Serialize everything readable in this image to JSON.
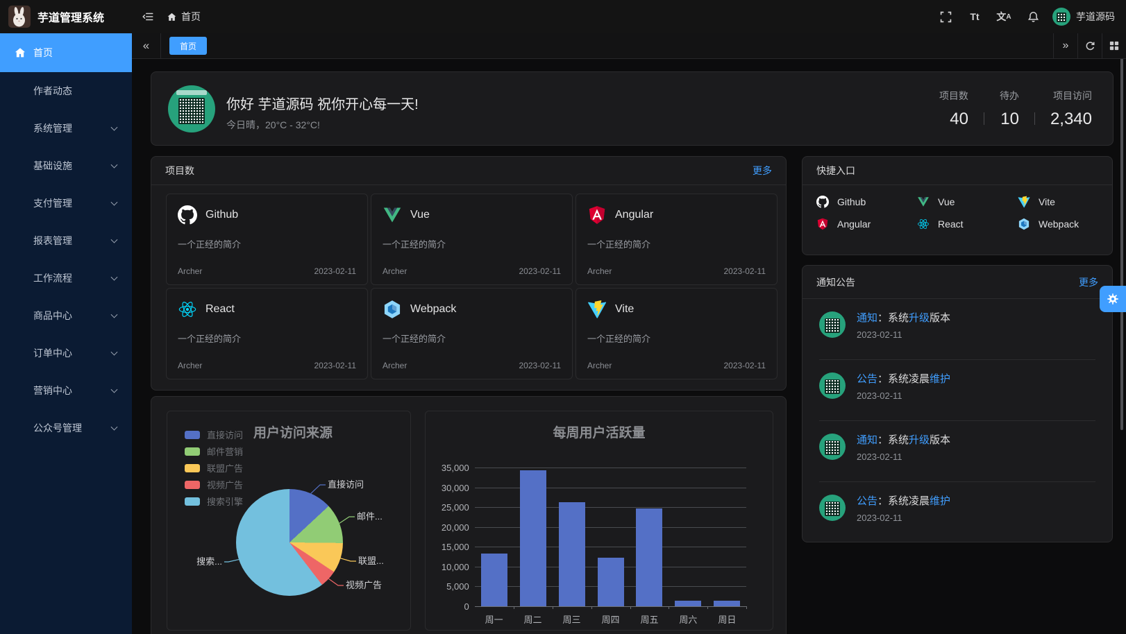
{
  "header": {
    "app_title": "芋道管理系统",
    "breadcrumb": "首页",
    "user_name": "芋道源码",
    "icons": [
      "fullscreen-icon",
      "font-size-icon",
      "language-icon",
      "bell-icon"
    ]
  },
  "tabbar": {
    "collapse_icon": "chevron-double-left-icon",
    "tabs": [
      {
        "label": "首页",
        "active": true
      }
    ],
    "actions": [
      "chevron-double-right-icon",
      "refresh-icon",
      "grid-icon"
    ]
  },
  "sidebar": {
    "items": [
      {
        "label": "首页",
        "icon": "home-icon",
        "active": true,
        "expandable": false
      },
      {
        "label": "作者动态",
        "active": false,
        "expandable": false
      },
      {
        "label": "系统管理",
        "active": false,
        "expandable": true
      },
      {
        "label": "基础设施",
        "active": false,
        "expandable": true
      },
      {
        "label": "支付管理",
        "active": false,
        "expandable": true
      },
      {
        "label": "报表管理",
        "active": false,
        "expandable": true
      },
      {
        "label": "工作流程",
        "active": false,
        "expandable": true
      },
      {
        "label": "商品中心",
        "active": false,
        "expandable": true
      },
      {
        "label": "订单中心",
        "active": false,
        "expandable": true
      },
      {
        "label": "营销中心",
        "active": false,
        "expandable": true
      },
      {
        "label": "公众号管理",
        "active": false,
        "expandable": true
      }
    ]
  },
  "welcome": {
    "greeting": "你好 芋道源码 祝你开心每一天!",
    "weather": "今日晴，20°C - 32°C!",
    "stats": [
      {
        "label": "项目数",
        "value": "40"
      },
      {
        "label": "待办",
        "value": "10"
      },
      {
        "label": "项目访问",
        "value": "2,340"
      }
    ]
  },
  "projects": {
    "title": "项目数",
    "more_label": "更多",
    "items": [
      {
        "name": "Github",
        "icon": "github-icon",
        "desc": "一个正经的简介",
        "author": "Archer",
        "date": "2023-02-11"
      },
      {
        "name": "Vue",
        "icon": "vue-icon",
        "desc": "一个正经的简介",
        "author": "Archer",
        "date": "2023-02-11"
      },
      {
        "name": "Angular",
        "icon": "angular-icon",
        "desc": "一个正经的简介",
        "author": "Archer",
        "date": "2023-02-11"
      },
      {
        "name": "React",
        "icon": "react-icon",
        "desc": "一个正经的简介",
        "author": "Archer",
        "date": "2023-02-11"
      },
      {
        "name": "Webpack",
        "icon": "webpack-icon",
        "desc": "一个正经的简介",
        "author": "Archer",
        "date": "2023-02-11"
      },
      {
        "name": "Vite",
        "icon": "vite-icon",
        "desc": "一个正经的简介",
        "author": "Archer",
        "date": "2023-02-11"
      }
    ]
  },
  "shortcuts": {
    "title": "快捷入口",
    "items": [
      {
        "label": "Github",
        "icon": "github-icon"
      },
      {
        "label": "Vue",
        "icon": "vue-icon"
      },
      {
        "label": "Vite",
        "icon": "vite-icon"
      },
      {
        "label": "Angular",
        "icon": "angular-icon"
      },
      {
        "label": "React",
        "icon": "react-icon"
      },
      {
        "label": "Webpack",
        "icon": "webpack-icon"
      }
    ]
  },
  "notices": {
    "title": "通知公告",
    "more_label": "更多",
    "items": [
      {
        "segments": [
          {
            "text": "通知",
            "highlight": true
          },
          {
            "text": "：系统",
            "highlight": false
          },
          {
            "text": "升级",
            "highlight": true
          },
          {
            "text": "版本",
            "highlight": false
          }
        ],
        "date": "2023-02-11"
      },
      {
        "segments": [
          {
            "text": "公告",
            "highlight": true
          },
          {
            "text": "：系统凌晨",
            "highlight": false
          },
          {
            "text": "维护",
            "highlight": true
          }
        ],
        "date": "2023-02-11"
      },
      {
        "segments": [
          {
            "text": "通知",
            "highlight": true
          },
          {
            "text": "：系统",
            "highlight": false
          },
          {
            "text": "升级",
            "highlight": true
          },
          {
            "text": "版本",
            "highlight": false
          }
        ],
        "date": "2023-02-11"
      },
      {
        "segments": [
          {
            "text": "公告",
            "highlight": true
          },
          {
            "text": "：系统凌晨",
            "highlight": false
          },
          {
            "text": "维护",
            "highlight": true
          }
        ],
        "date": "2023-02-11"
      }
    ]
  },
  "chart_data": [
    {
      "type": "pie",
      "title": "用户访问来源",
      "labels": [
        "直接访问",
        "邮件营销",
        "联盟广告",
        "视频广告",
        "搜索引擎"
      ],
      "values": [
        335,
        310,
        234,
        135,
        1548
      ],
      "colors": [
        "#5470c6",
        "#91cc75",
        "#fac858",
        "#ee6666",
        "#73c0de"
      ],
      "callout_labels": [
        "直接访问",
        "邮件...",
        "联盟...",
        "视频广告",
        "搜索..."
      ],
      "legend_position": "left"
    },
    {
      "type": "bar",
      "title": "每周用户活跃量",
      "categories": [
        "周一",
        "周二",
        "周三",
        "周四",
        "周五",
        "周六",
        "周日"
      ],
      "values": [
        13253,
        34235,
        26321,
        12340,
        24643,
        1322,
        1324
      ],
      "ylim": [
        0,
        35000
      ],
      "ytick_labels": [
        "0",
        "5,000",
        "10,000",
        "15,000",
        "20,000",
        "25,000",
        "30,000",
        "35,000"
      ],
      "bar_color": "#5470c6",
      "grid": true,
      "legend_position": "none"
    }
  ],
  "colors": {
    "accent": "#409eff",
    "sidebar_bg": "#0b1b33",
    "card_bg": "#1b1b1d",
    "page_bg": "#0c0c0d"
  }
}
